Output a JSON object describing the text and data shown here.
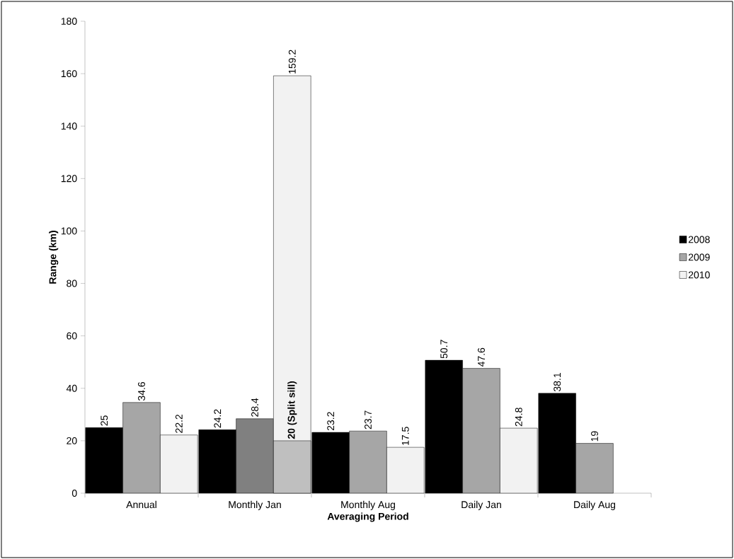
{
  "chart_data": {
    "type": "bar",
    "xlabel": "Averaging Period",
    "ylabel": "Range (km)",
    "categories": [
      "Annual",
      "Monthly Jan",
      "Monthly Aug",
      "Daily Jan",
      "Daily Aug"
    ],
    "series": [
      {
        "name": "2008",
        "color": "#000000",
        "values": [
          25,
          24.2,
          23.2,
          50.7,
          38.1
        ],
        "value_labels": [
          "25",
          "24.2",
          "23.2",
          "50.7",
          "38.1"
        ]
      },
      {
        "name": "2009",
        "color": "#a6a6a6",
        "colors": [
          "#a6a6a6",
          "#808080",
          "#a6a6a6",
          "#a6a6a6",
          "#a6a6a6"
        ],
        "values": [
          34.6,
          28.4,
          23.7,
          47.6,
          19
        ],
        "value_labels": [
          "34.6",
          "28.4",
          "23.7",
          "47.6",
          "19"
        ]
      },
      {
        "name": "2010",
        "color": "#f2f2f2",
        "values": [
          22.2,
          159.2,
          17.5,
          24.8,
          null
        ],
        "value_labels": [
          "22.2",
          "159.2",
          "17.5",
          "24.8",
          null
        ]
      },
      {
        "color": "#bfbfbf",
        "values": [
          null,
          20,
          null,
          null,
          null
        ],
        "value_labels": [
          null,
          "**20 (Split sill)**",
          null,
          null,
          null
        ]
      }
    ],
    "ylim": [
      0,
      180
    ],
    "yticks": [
      0,
      20,
      40,
      60,
      80,
      100,
      120,
      140,
      160,
      180
    ],
    "legend": "right"
  }
}
